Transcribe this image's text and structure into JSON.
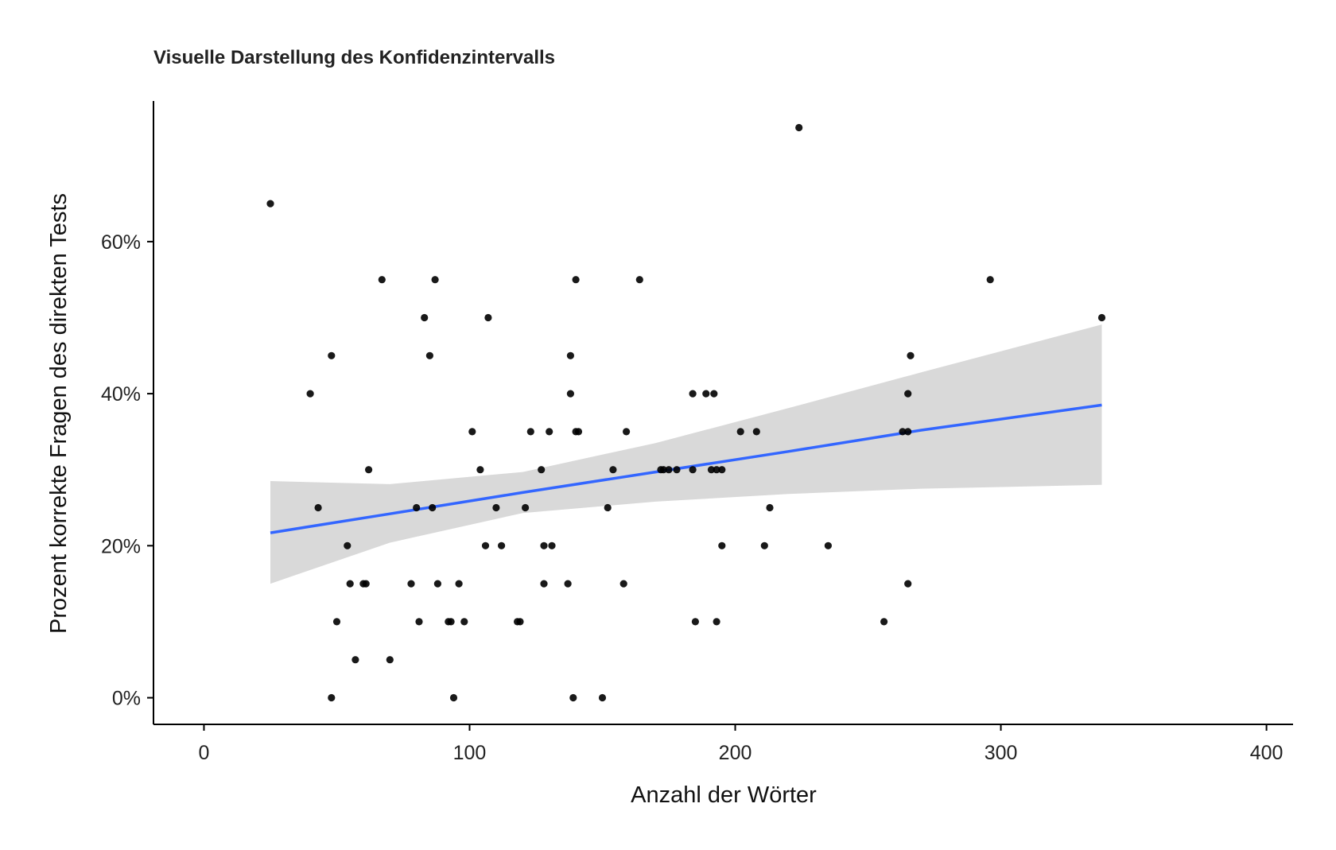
{
  "chart_data": {
    "type": "scatter",
    "title": "Visuelle Darstellung des Konfidenzintervalls",
    "xlabel": "Anzahl der Wörter",
    "ylabel": "Prozent korrekte Fragen des direkten Tests",
    "xlim": [
      -19,
      410
    ],
    "ylim": [
      -0.035,
      0.785
    ],
    "x_ticks": [
      {
        "value": 0,
        "label": "0"
      },
      {
        "value": 100,
        "label": "100"
      },
      {
        "value": 200,
        "label": "200"
      },
      {
        "value": 300,
        "label": "300"
      },
      {
        "value": 400,
        "label": "400"
      }
    ],
    "y_ticks": [
      {
        "value": 0,
        "label": "0%"
      },
      {
        "value": 0.2,
        "label": "20%"
      },
      {
        "value": 0.4,
        "label": "40%"
      },
      {
        "value": 0.6,
        "label": "60%"
      }
    ],
    "grid": false,
    "legend": "none",
    "point_color": "#000000",
    "trend_color": "#3366ff",
    "band_color": "#d9d9d9",
    "points": [
      {
        "x": 25,
        "y": 0.65
      },
      {
        "x": 40,
        "y": 0.4
      },
      {
        "x": 43,
        "y": 0.25
      },
      {
        "x": 48,
        "y": 0.45
      },
      {
        "x": 48,
        "y": 0.0
      },
      {
        "x": 50,
        "y": 0.1
      },
      {
        "x": 54,
        "y": 0.2
      },
      {
        "x": 55,
        "y": 0.15
      },
      {
        "x": 57,
        "y": 0.05
      },
      {
        "x": 60,
        "y": 0.15
      },
      {
        "x": 61,
        "y": 0.15
      },
      {
        "x": 62,
        "y": 0.3
      },
      {
        "x": 67,
        "y": 0.55
      },
      {
        "x": 70,
        "y": 0.05
      },
      {
        "x": 78,
        "y": 0.15
      },
      {
        "x": 80,
        "y": 0.25
      },
      {
        "x": 81,
        "y": 0.1
      },
      {
        "x": 83,
        "y": 0.5
      },
      {
        "x": 85,
        "y": 0.45
      },
      {
        "x": 86,
        "y": 0.25
      },
      {
        "x": 87,
        "y": 0.55
      },
      {
        "x": 88,
        "y": 0.15
      },
      {
        "x": 92,
        "y": 0.1
      },
      {
        "x": 93,
        "y": 0.1
      },
      {
        "x": 94,
        "y": 0.0
      },
      {
        "x": 96,
        "y": 0.15
      },
      {
        "x": 98,
        "y": 0.1
      },
      {
        "x": 101,
        "y": 0.35
      },
      {
        "x": 104,
        "y": 0.3
      },
      {
        "x": 106,
        "y": 0.2
      },
      {
        "x": 107,
        "y": 0.5
      },
      {
        "x": 110,
        "y": 0.25
      },
      {
        "x": 112,
        "y": 0.2
      },
      {
        "x": 118,
        "y": 0.1
      },
      {
        "x": 119,
        "y": 0.1
      },
      {
        "x": 121,
        "y": 0.25
      },
      {
        "x": 123,
        "y": 0.35
      },
      {
        "x": 127,
        "y": 0.3
      },
      {
        "x": 128,
        "y": 0.2
      },
      {
        "x": 128,
        "y": 0.15
      },
      {
        "x": 130,
        "y": 0.35
      },
      {
        "x": 131,
        "y": 0.2
      },
      {
        "x": 137,
        "y": 0.15
      },
      {
        "x": 138,
        "y": 0.45
      },
      {
        "x": 138,
        "y": 0.4
      },
      {
        "x": 139,
        "y": 0.0
      },
      {
        "x": 140,
        "y": 0.55
      },
      {
        "x": 140,
        "y": 0.35
      },
      {
        "x": 141,
        "y": 0.35
      },
      {
        "x": 150,
        "y": 0.0
      },
      {
        "x": 152,
        "y": 0.25
      },
      {
        "x": 154,
        "y": 0.3
      },
      {
        "x": 158,
        "y": 0.15
      },
      {
        "x": 159,
        "y": 0.35
      },
      {
        "x": 164,
        "y": 0.55
      },
      {
        "x": 172,
        "y": 0.3
      },
      {
        "x": 173,
        "y": 0.3
      },
      {
        "x": 175,
        "y": 0.3
      },
      {
        "x": 178,
        "y": 0.3
      },
      {
        "x": 184,
        "y": 0.4
      },
      {
        "x": 184,
        "y": 0.3
      },
      {
        "x": 185,
        "y": 0.1
      },
      {
        "x": 189,
        "y": 0.4
      },
      {
        "x": 191,
        "y": 0.3
      },
      {
        "x": 192,
        "y": 0.4
      },
      {
        "x": 193,
        "y": 0.3
      },
      {
        "x": 193,
        "y": 0.1
      },
      {
        "x": 195,
        "y": 0.3
      },
      {
        "x": 195,
        "y": 0.2
      },
      {
        "x": 202,
        "y": 0.35
      },
      {
        "x": 208,
        "y": 0.35
      },
      {
        "x": 211,
        "y": 0.2
      },
      {
        "x": 213,
        "y": 0.25
      },
      {
        "x": 224,
        "y": 0.75
      },
      {
        "x": 235,
        "y": 0.2
      },
      {
        "x": 256,
        "y": 0.1
      },
      {
        "x": 263,
        "y": 0.35
      },
      {
        "x": 265,
        "y": 0.4
      },
      {
        "x": 265,
        "y": 0.35
      },
      {
        "x": 265,
        "y": 0.15
      },
      {
        "x": 266,
        "y": 0.45
      },
      {
        "x": 296,
        "y": 0.55
      },
      {
        "x": 338,
        "y": 0.5
      }
    ],
    "trend": {
      "x": [
        25,
        70,
        120,
        170,
        220,
        270,
        338
      ],
      "y": [
        0.217,
        0.242,
        0.27,
        0.297,
        0.324,
        0.352,
        0.385
      ]
    },
    "confidence_band": {
      "x": [
        25,
        70,
        120,
        170,
        220,
        270,
        338
      ],
      "lower": [
        0.15,
        0.204,
        0.243,
        0.258,
        0.268,
        0.275,
        0.28
      ],
      "upper": [
        0.285,
        0.281,
        0.297,
        0.335,
        0.381,
        0.428,
        0.491
      ]
    }
  }
}
